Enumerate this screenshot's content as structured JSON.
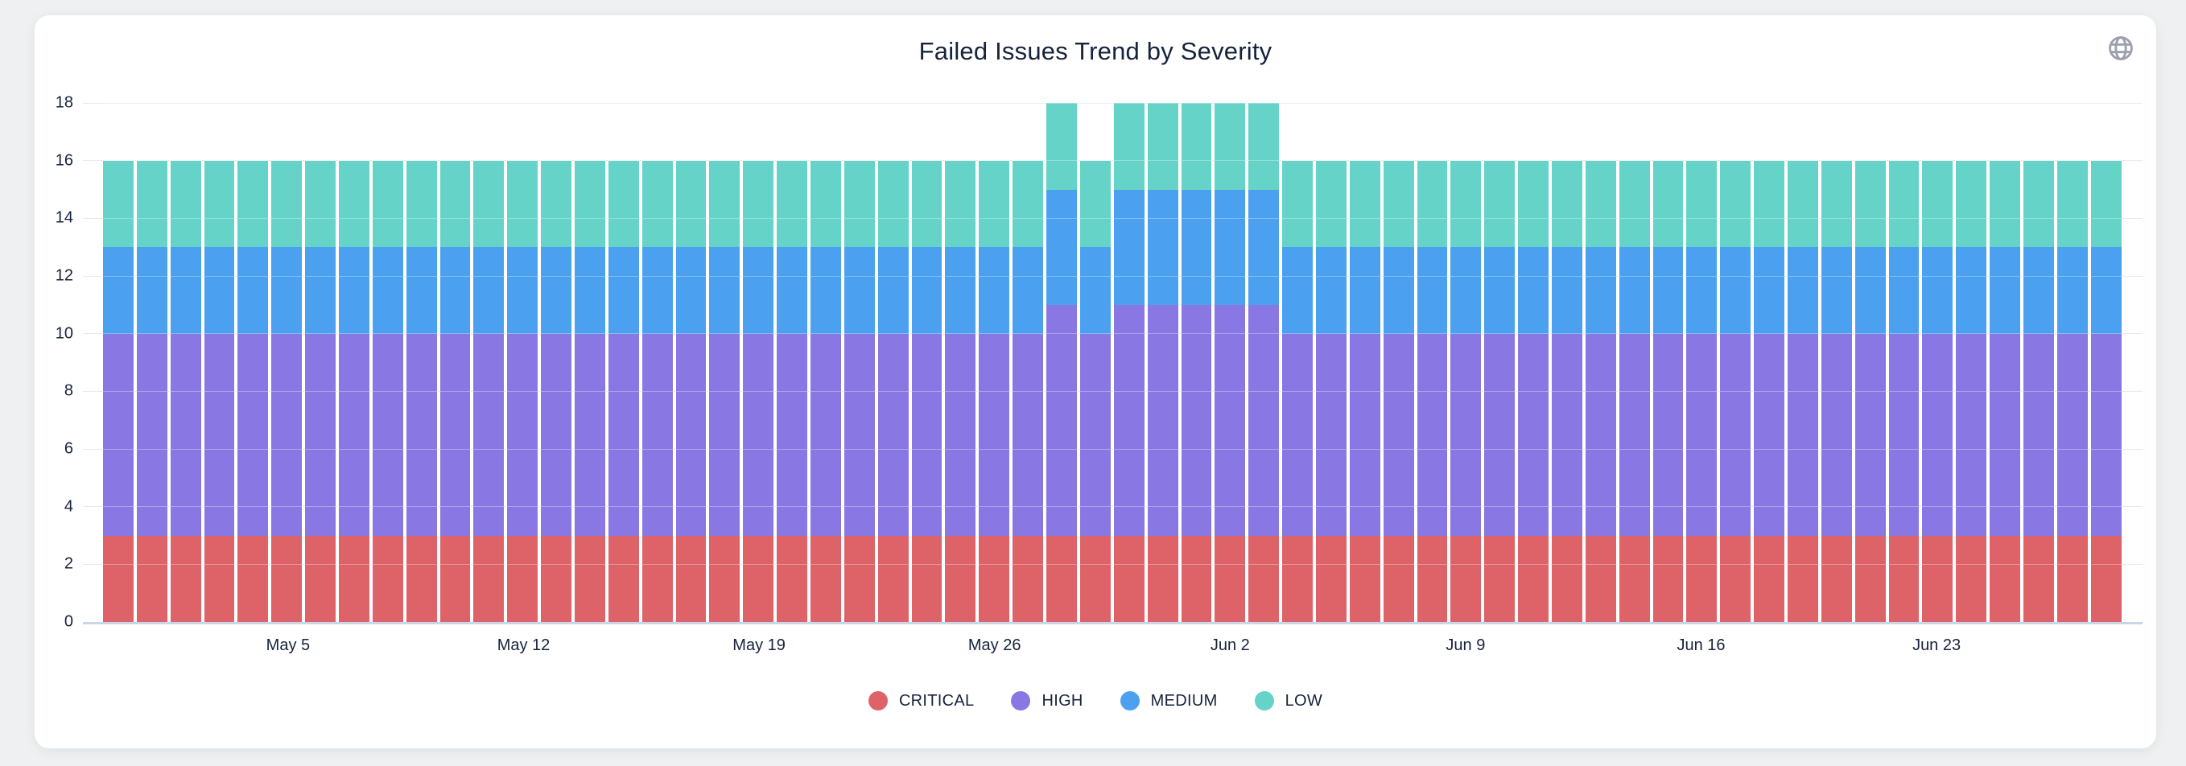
{
  "theme": {
    "page_background": "#eef0f1",
    "card_background": "#ffffff",
    "text_color": "#16233c",
    "gridline_color": "#e9eaec",
    "axis_baseline_color": "#ccd5e8",
    "globe_icon_color": "#9ba1ac"
  },
  "header": {
    "icons": [
      {
        "name": "globe-icon",
        "color": "#9ba1ac"
      }
    ]
  },
  "chart_data": {
    "type": "bar",
    "stacked": true,
    "title": "Failed Issues Trend by Severity",
    "xlabel": "",
    "ylabel": "",
    "ylim": [
      0,
      18
    ],
    "y_ticks": [
      0,
      2,
      4,
      6,
      8,
      10,
      12,
      14,
      16,
      18
    ],
    "grid": true,
    "legend_position": "bottom",
    "x": [
      "Apr 30",
      "May 1",
      "May 2",
      "May 3",
      "May 4",
      "May 5",
      "May 6",
      "May 7",
      "May 8",
      "May 9",
      "May 10",
      "May 11",
      "May 12",
      "May 13",
      "May 14",
      "May 15",
      "May 16",
      "May 17",
      "May 18",
      "May 19",
      "May 20",
      "May 21",
      "May 22",
      "May 23",
      "May 24",
      "May 25",
      "May 26",
      "May 27",
      "May 28",
      "May 29",
      "May 30",
      "May 31",
      "Jun 1",
      "Jun 2",
      "Jun 3",
      "Jun 4",
      "Jun 5",
      "Jun 6",
      "Jun 7",
      "Jun 8",
      "Jun 9",
      "Jun 10",
      "Jun 11",
      "Jun 12",
      "Jun 13",
      "Jun 14",
      "Jun 15",
      "Jun 16",
      "Jun 17",
      "Jun 18",
      "Jun 19",
      "Jun 20",
      "Jun 21",
      "Jun 22",
      "Jun 23",
      "Jun 24",
      "Jun 25",
      "Jun 26",
      "Jun 27",
      "Jun 28"
    ],
    "x_ticks": [
      {
        "label": "May 5",
        "index": 5
      },
      {
        "label": "May 12",
        "index": 12
      },
      {
        "label": "May 19",
        "index": 19
      },
      {
        "label": "May 26",
        "index": 26
      },
      {
        "label": "Jun 2",
        "index": 33
      },
      {
        "label": "Jun 9",
        "index": 40
      },
      {
        "label": "Jun 16",
        "index": 47
      },
      {
        "label": "Jun 23",
        "index": 54
      }
    ],
    "series": [
      {
        "name": "CRITICAL",
        "color": "#dd6368",
        "values": [
          3,
          3,
          3,
          3,
          3,
          3,
          3,
          3,
          3,
          3,
          3,
          3,
          3,
          3,
          3,
          3,
          3,
          3,
          3,
          3,
          3,
          3,
          3,
          3,
          3,
          3,
          3,
          3,
          3,
          3,
          3,
          3,
          3,
          3,
          3,
          3,
          3,
          3,
          3,
          3,
          3,
          3,
          3,
          3,
          3,
          3,
          3,
          3,
          3,
          3,
          3,
          3,
          3,
          3,
          3,
          3,
          3,
          3,
          3,
          3
        ]
      },
      {
        "name": "HIGH",
        "color": "#8978e3",
        "values": [
          7,
          7,
          7,
          7,
          7,
          7,
          7,
          7,
          7,
          7,
          7,
          7,
          7,
          7,
          7,
          7,
          7,
          7,
          7,
          7,
          7,
          7,
          7,
          7,
          7,
          7,
          7,
          7,
          8,
          7,
          8,
          8,
          8,
          8,
          8,
          7,
          7,
          7,
          7,
          7,
          7,
          7,
          7,
          7,
          7,
          7,
          7,
          7,
          7,
          7,
          7,
          7,
          7,
          7,
          7,
          7,
          7,
          7,
          7,
          7
        ]
      },
      {
        "name": "MEDIUM",
        "color": "#4ba1ef",
        "values": [
          3,
          3,
          3,
          3,
          3,
          3,
          3,
          3,
          3,
          3,
          3,
          3,
          3,
          3,
          3,
          3,
          3,
          3,
          3,
          3,
          3,
          3,
          3,
          3,
          3,
          3,
          3,
          3,
          4,
          3,
          4,
          4,
          4,
          4,
          4,
          3,
          3,
          3,
          3,
          3,
          3,
          3,
          3,
          3,
          3,
          3,
          3,
          3,
          3,
          3,
          3,
          3,
          3,
          3,
          3,
          3,
          3,
          3,
          3,
          3
        ]
      },
      {
        "name": "LOW",
        "color": "#65d3c7",
        "values": [
          3,
          3,
          3,
          3,
          3,
          3,
          3,
          3,
          3,
          3,
          3,
          3,
          3,
          3,
          3,
          3,
          3,
          3,
          3,
          3,
          3,
          3,
          3,
          3,
          3,
          3,
          3,
          3,
          3,
          3,
          3,
          3,
          3,
          3,
          3,
          3,
          3,
          3,
          3,
          3,
          3,
          3,
          3,
          3,
          3,
          3,
          3,
          3,
          3,
          3,
          3,
          3,
          3,
          3,
          3,
          3,
          3,
          3,
          3,
          3
        ]
      }
    ]
  }
}
